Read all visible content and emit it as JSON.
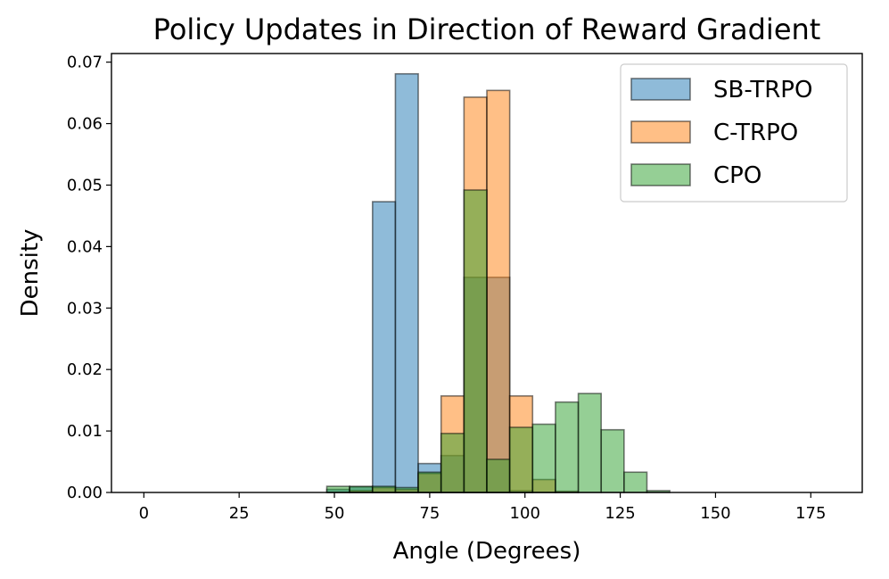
{
  "chart_data": {
    "type": "bar",
    "title": "Policy Updates in Direction of Reward Gradient",
    "xlabel": "Angle (Degrees)",
    "ylabel": "Density",
    "xlim": [
      -8.5,
      188.5
    ],
    "ylim": [
      0,
      0.0714
    ],
    "xticks": [
      0,
      25,
      50,
      75,
      100,
      125,
      150,
      175
    ],
    "yticks": [
      0.0,
      0.01,
      0.02,
      0.03,
      0.04,
      0.05,
      0.06,
      0.07
    ],
    "ytick_labels": [
      "0.00",
      "0.01",
      "0.02",
      "0.03",
      "0.04",
      "0.05",
      "0.06",
      "0.07"
    ],
    "bin_width": 6,
    "bin_starts": [
      0,
      6,
      12,
      18,
      24,
      30,
      36,
      42,
      48,
      54,
      60,
      66,
      72,
      78,
      84,
      90,
      96,
      102,
      108,
      114,
      120,
      126,
      132,
      138,
      144,
      150,
      156,
      162,
      168,
      174
    ],
    "grid": false,
    "legend_position": "upper right",
    "series": [
      {
        "name": "SB-TRPO",
        "color": "#1f77b4",
        "values": [
          0,
          0,
          0,
          0,
          0,
          0,
          0,
          0,
          0.0005,
          0.0009,
          0.0473,
          0.0681,
          0.0047,
          0.006,
          0.035,
          0.035,
          0.0003,
          0,
          0,
          0,
          0,
          0,
          0,
          0,
          0,
          0,
          0,
          0,
          0,
          0
        ]
      },
      {
        "name": "C-TRPO",
        "color": "#ff7f0e",
        "values": [
          0,
          0,
          0,
          0,
          0,
          0,
          0,
          0,
          0,
          0.0003,
          0.0008,
          0.0005,
          0.0031,
          0.0157,
          0.0643,
          0.0654,
          0.0157,
          0.0021,
          0.0002,
          0,
          0,
          0,
          0,
          0,
          0,
          0,
          0,
          0,
          0,
          0
        ]
      },
      {
        "name": "CPO",
        "color": "#2ca02c",
        "values": [
          0,
          0,
          0,
          0,
          0,
          0,
          0,
          0,
          0.001,
          0.001,
          0.001,
          0.0008,
          0.0033,
          0.0096,
          0.0492,
          0.0054,
          0.0106,
          0.0111,
          0.0147,
          0.0161,
          0.0102,
          0.0033,
          0.0003,
          0,
          0,
          0,
          0,
          0,
          0,
          0
        ]
      }
    ]
  }
}
